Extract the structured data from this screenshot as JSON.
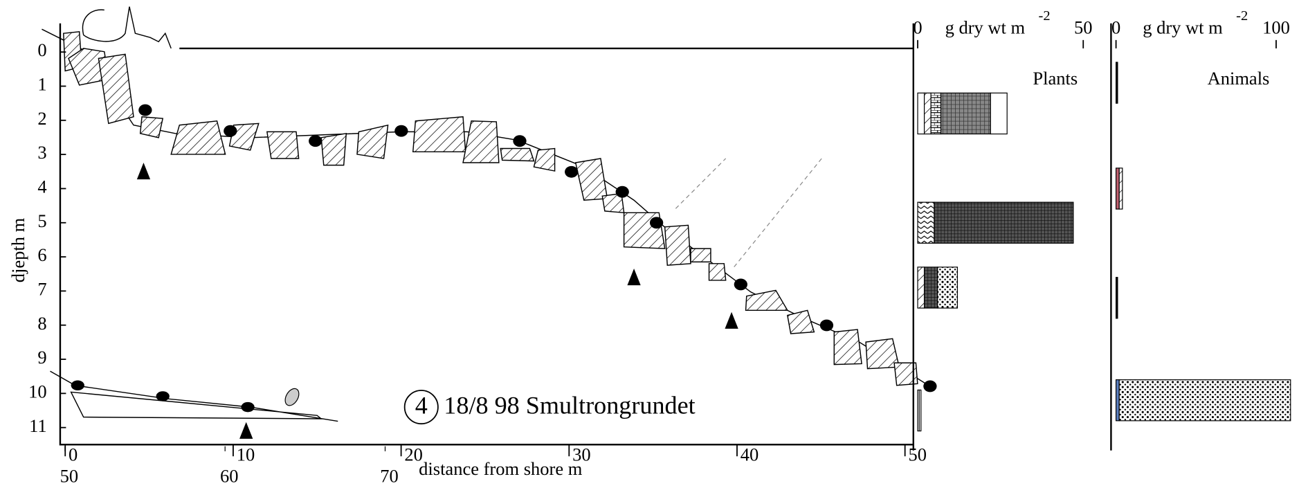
{
  "chart_data": [
    {
      "type": "profile",
      "ylabel": "djepth m",
      "xlabel": "distance from shore m",
      "annotation_number": "4",
      "annotation": "18/8 98 Smultrongrundet",
      "xlim": [
        -0.3,
        50.5
      ],
      "xticks": [
        0,
        10,
        20,
        30,
        40,
        50
      ],
      "x2lim": [
        49.7,
        103
      ],
      "x2ticks": [
        50,
        60,
        70
      ],
      "ylim": [
        -0.84,
        11.5
      ],
      "yticks": [
        0,
        1,
        2,
        3,
        4,
        5,
        6,
        7,
        8,
        9,
        10,
        11
      ]
    },
    {
      "type": "stacked-hbar",
      "title": "Plants",
      "xlabel": "g dry wt m",
      "xlabel_sup": "-2",
      "xlim": [
        -1.3,
        58.4
      ],
      "xticks": [
        0,
        50
      ],
      "ylim": [
        -0.84,
        11.5
      ],
      "bars": [
        {
          "depth": 1.8,
          "values": [
            2,
            2,
            3,
            15,
            5
          ],
          "fills": [
            "white",
            "hatch",
            "brick",
            "grid",
            "white"
          ]
        },
        {
          "depth": 5.0,
          "values": [
            5,
            42
          ],
          "fills": [
            "zigzag",
            "darkgrid"
          ]
        },
        {
          "depth": 6.9,
          "values": [
            2,
            4,
            6
          ],
          "fills": [
            "hatch",
            "darkgrid",
            "dots"
          ]
        },
        {
          "depth": 10.5,
          "values": [
            1
          ],
          "fills": [
            "lines"
          ]
        }
      ]
    },
    {
      "type": "stacked-hbar",
      "title": "Animals",
      "xlabel": "g dry wt m",
      "xlabel_sup": "-2",
      "xlim": [
        -3.1,
        116.7
      ],
      "xticks": [
        0,
        100
      ],
      "ylim": [
        -0.84,
        11.5
      ],
      "bars": [
        {
          "depth": 0.9,
          "values": [
            1
          ],
          "fills": [
            "black"
          ]
        },
        {
          "depth": 4.0,
          "values": [
            2,
            2
          ],
          "fills": [
            "#c06070",
            "hatch"
          ]
        },
        {
          "depth": 7.2,
          "values": [
            1
          ],
          "fills": [
            "black"
          ]
        },
        {
          "depth": 10.2,
          "values": [
            2,
            107
          ],
          "fills": [
            "#5b7fc0",
            "dots"
          ]
        }
      ]
    }
  ]
}
